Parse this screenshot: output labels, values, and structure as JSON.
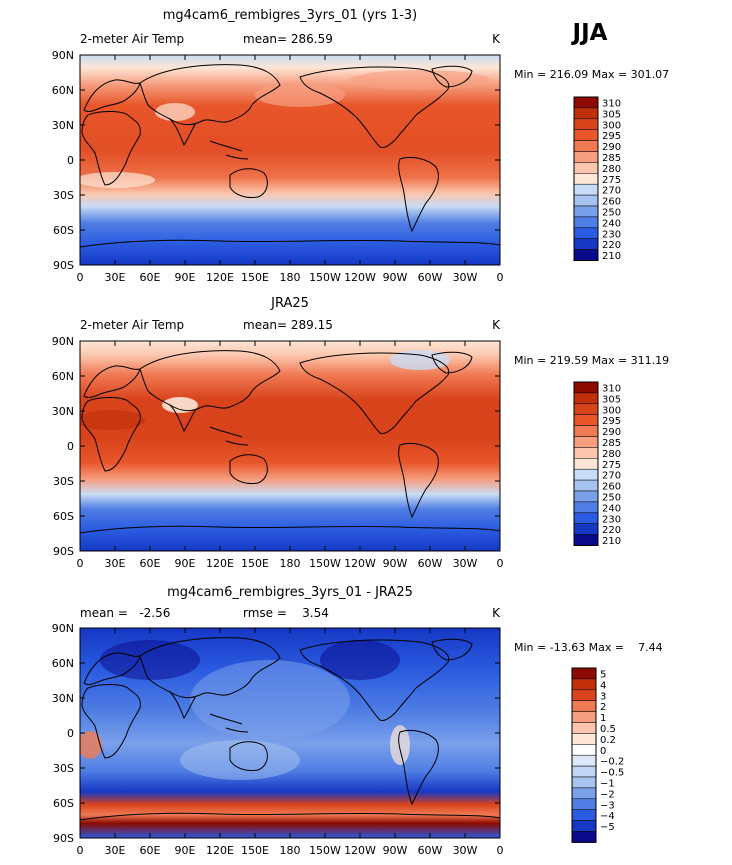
{
  "season": "JJA",
  "lon_ticks": [
    "0",
    "30E",
    "60E",
    "90E",
    "120E",
    "150E",
    "180",
    "150W",
    "120W",
    "90W",
    "60W",
    "30W",
    "0"
  ],
  "lat_ticks": [
    "90N",
    "60N",
    "30N",
    "0",
    "30S",
    "60S",
    "90S"
  ],
  "panels": [
    {
      "id": "model",
      "title": "mg4cam6_rembigres_3yrs_01 (yrs 1-3)",
      "left_label": "2-meter Air Temp",
      "center_label": "mean= 286.59",
      "right_label": "K",
      "minmax": "Min = 216.09 Max = 301.07",
      "levels": [
        "310",
        "305",
        "300",
        "295",
        "290",
        "285",
        "280",
        "275",
        "270",
        "260",
        "250",
        "240",
        "230",
        "220",
        "210"
      ],
      "colors": [
        "#8c0a00",
        "#c0300a",
        "#d8431b",
        "#e8562a",
        "#f07a54",
        "#f69e80",
        "#fbc6ad",
        "#fde6d6",
        "#c9dcf5",
        "#a7c3f0",
        "#7ba0ea",
        "#4f7ee4",
        "#2a5be0",
        "#1638c4",
        "#0a0a8a"
      ]
    },
    {
      "id": "obs",
      "title": "JRA25",
      "left_label": "2-meter Air Temp",
      "center_label": "mean= 289.15",
      "right_label": "K",
      "minmax": "Min = 219.59 Max = 311.19",
      "levels": [
        "310",
        "305",
        "300",
        "295",
        "290",
        "285",
        "280",
        "275",
        "270",
        "260",
        "250",
        "240",
        "230",
        "220",
        "210"
      ],
      "colors": [
        "#8c0a00",
        "#c0300a",
        "#d8431b",
        "#e8562a",
        "#f07a54",
        "#f69e80",
        "#fbc6ad",
        "#fde6d6",
        "#c9dcf5",
        "#a7c3f0",
        "#7ba0ea",
        "#4f7ee4",
        "#2a5be0",
        "#1638c4",
        "#0a0a8a"
      ]
    },
    {
      "id": "diff",
      "title": "mg4cam6_rembigres_3yrs_01 - JRA25",
      "left_label": "mean =   -2.56",
      "center_label": "rmse =    3.54",
      "right_label": "K",
      "minmax": "Min = -13.63 Max =    7.44",
      "levels": [
        "5",
        "4",
        "3",
        "2",
        "1",
        "0.5",
        "0.2",
        "0",
        "−0.2",
        "−0.5",
        "−1",
        "−2",
        "−3",
        "−4",
        "−5"
      ],
      "colors": [
        "#8c0a00",
        "#c0300a",
        "#d8431b",
        "#f07a54",
        "#f69e80",
        "#fbc6ad",
        "#fde6d6",
        "#ffffff",
        "#dde8f8",
        "#c2d6f5",
        "#a7c3f0",
        "#7ba0ea",
        "#4f7ee4",
        "#2a5be0",
        "#1638c4",
        "#0a0a8a"
      ]
    }
  ]
}
